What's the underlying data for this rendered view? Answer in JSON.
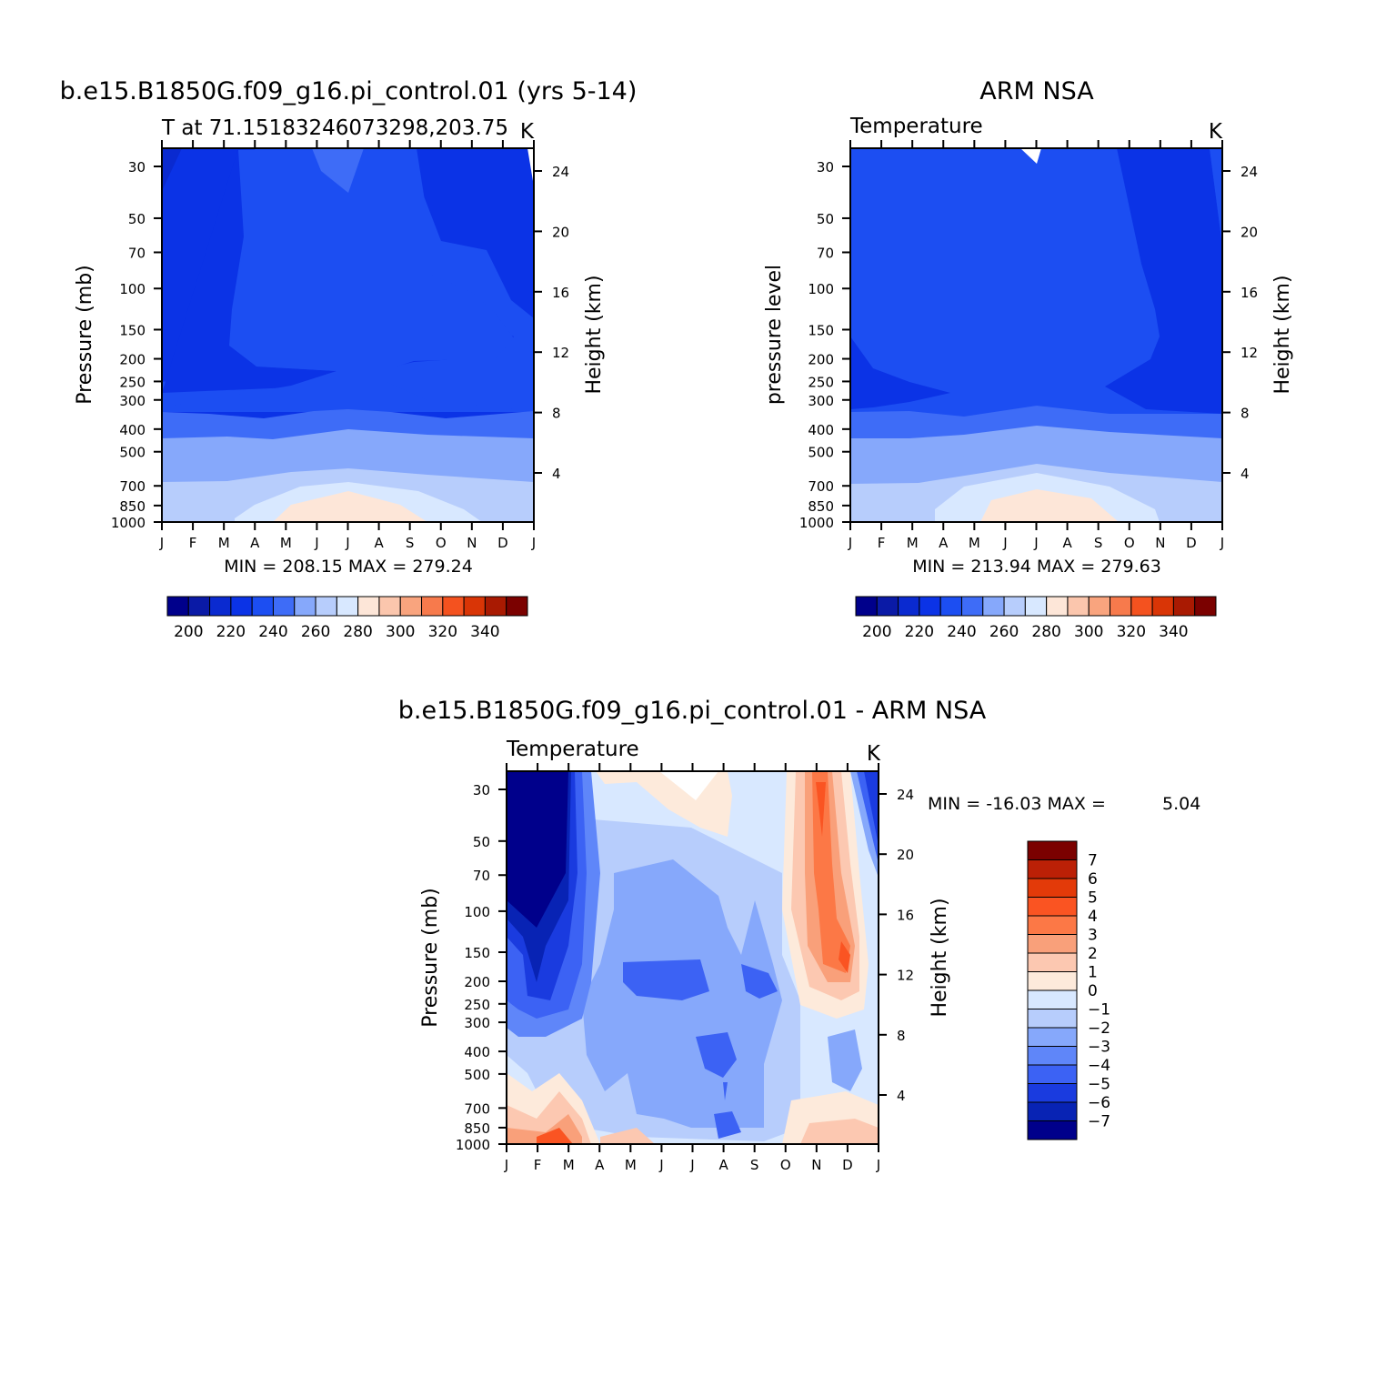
{
  "chart_data": [
    {
      "type": "heatmap",
      "title": "b.e15.B1850G.f09_g16.pi_control.01 (yrs 5-14)",
      "subtitle_left": "T at 71.15183246073298,203.75",
      "subtitle_right": "K",
      "ylabel": "Pressure (mb)",
      "ylabel_right": "Height (km)",
      "stats": "MIN = 208.15 MAX = 279.24",
      "x": [
        "J",
        "F",
        "M",
        "A",
        "M",
        "J",
        "J",
        "A",
        "S",
        "O",
        "N",
        "D",
        "J"
      ],
      "y_pressure_ticks": [
        30,
        50,
        70,
        100,
        150,
        200,
        250,
        300,
        400,
        500,
        700,
        850,
        1000
      ],
      "y_height_ticks": [
        24,
        20,
        16,
        12,
        8,
        4
      ],
      "zlim": [
        208.15,
        279.24
      ],
      "colorbar_labels": [
        200,
        220,
        240,
        260,
        280,
        300,
        320,
        340
      ]
    },
    {
      "type": "heatmap",
      "title": "ARM NSA",
      "subtitle_left": "Temperature",
      "subtitle_right": "K",
      "ylabel": "pressure level",
      "ylabel_right": "Height (km)",
      "stats": "MIN = 213.94 MAX = 279.63",
      "x": [
        "J",
        "F",
        "M",
        "A",
        "M",
        "J",
        "J",
        "A",
        "S",
        "O",
        "N",
        "D",
        "J"
      ],
      "y_pressure_ticks": [
        30,
        50,
        70,
        100,
        150,
        200,
        250,
        300,
        400,
        500,
        700,
        850,
        1000
      ],
      "y_height_ticks": [
        24,
        20,
        16,
        12,
        8,
        4
      ],
      "zlim": [
        213.94,
        279.63
      ],
      "colorbar_labels": [
        200,
        220,
        240,
        260,
        280,
        300,
        320,
        340
      ]
    },
    {
      "type": "heatmap",
      "title": "b.e15.B1850G.f09_g16.pi_control.01 - ARM NSA",
      "subtitle_left": "Temperature",
      "subtitle_right": "K",
      "ylabel": "Pressure (mb)",
      "ylabel_right": "Height (km)",
      "stats_min_label": "MIN = -16.03 MAX =",
      "stats_max_value": "5.04",
      "x": [
        "J",
        "F",
        "M",
        "A",
        "M",
        "J",
        "J",
        "A",
        "S",
        "O",
        "N",
        "D",
        "J"
      ],
      "y_pressure_ticks": [
        30,
        50,
        70,
        100,
        150,
        200,
        250,
        300,
        400,
        500,
        700,
        850,
        1000
      ],
      "y_height_ticks": [
        24,
        20,
        16,
        12,
        8,
        4
      ],
      "zlim": [
        -16.03,
        5.04
      ],
      "colorbar_labels": [
        7,
        6,
        5,
        4,
        3,
        2,
        1,
        0,
        -1,
        -2,
        -3,
        -4,
        -5,
        -6,
        -7
      ]
    }
  ],
  "palettes": {
    "absolute": [
      "#00008b",
      "#0a1aa6",
      "#0a2ad0",
      "#0b33e6",
      "#1c4ef2",
      "#3e6cf7",
      "#86a8fb",
      "#b7cdfc",
      "#d8e8ff",
      "#fde6d8",
      "#fbc6ad",
      "#f9a47e",
      "#f77a4c",
      "#f4521f",
      "#d93506",
      "#a91a02",
      "#7b0100"
    ],
    "difference": [
      "#7b0100",
      "#bb2006",
      "#e33a09",
      "#fa5422",
      "#fc7846",
      "#f9a07a",
      "#fcc8b1",
      "#fdeadb",
      "#d8e8ff",
      "#b7cdfc",
      "#86a8fb",
      "#5f86f9",
      "#3c62f4",
      "#1a3bdf",
      "#0823b4",
      "#00008b"
    ]
  }
}
